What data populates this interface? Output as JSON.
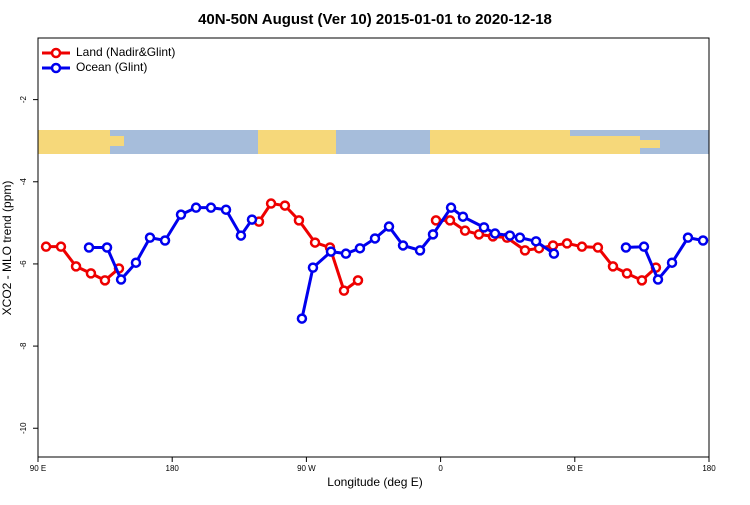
{
  "chart_data": {
    "type": "line",
    "title": "40N-50N August (Ver 10)   2015-01-01 to 2020-12-18",
    "x_label": "Longitude (deg E)",
    "y_label": "XCO2 - MLO trend (ppm)",
    "xlim": [
      90,
      540
    ],
    "ylim": [
      -10.7,
      -0.5
    ],
    "xticks": [
      {
        "value": 90,
        "label": "90 E"
      },
      {
        "value": 180,
        "label": "180"
      },
      {
        "value": 270,
        "label": "90 W"
      },
      {
        "value": 360,
        "label": "0"
      },
      {
        "value": 450,
        "label": "90 E"
      },
      {
        "value": 540,
        "label": "180"
      }
    ],
    "yticks": [
      -10,
      -8,
      -6,
      -4,
      -2
    ],
    "legend": "top-left",
    "series": [
      {
        "name": "Land (Nadir&Glint)",
        "color": "#ee0000",
        "x": [
          95.4,
          105.4,
          115.5,
          125.5,
          134.9,
          144.3,
          null,
          238.2,
          246.3,
          255.6,
          265,
          275.8,
          285.8,
          295.2,
          304.6,
          null,
          356.9,
          366.3,
          376.4,
          385.7,
          395.1,
          404.5,
          416.6,
          426,
          435.4,
          444.8,
          454.8,
          465.5,
          475.6,
          485,
          495,
          504.4
        ],
        "values": [
          -5.58,
          -5.58,
          -6.06,
          -6.23,
          -6.4,
          -6.11,
          null,
          -4.97,
          -4.53,
          -4.58,
          -4.94,
          -5.48,
          -5.6,
          -6.65,
          -6.4,
          null,
          -4.94,
          -4.94,
          -5.19,
          -5.28,
          -5.33,
          -5.36,
          -5.67,
          -5.62,
          -5.55,
          -5.5,
          -5.58,
          -5.6,
          -6.06,
          -6.23,
          -6.4,
          -6.09
        ]
      },
      {
        "name": "Ocean (Glint)",
        "color": "#0000ee",
        "x": [
          124.2,
          136.3,
          145.7,
          155.7,
          165.1,
          175.2,
          185.9,
          196,
          206,
          216.1,
          226.1,
          233.5,
          null,
          267,
          274.4,
          286.5,
          296.5,
          305.9,
          316,
          325.4,
          334.8,
          346.2,
          354.9,
          367,
          375,
          389.1,
          396.5,
          406.5,
          413.2,
          424,
          436,
          null,
          484.3,
          496.4,
          505.8,
          515.2,
          525.9,
          536
        ],
        "values": [
          -5.6,
          -5.6,
          -6.38,
          -5.97,
          -5.36,
          -5.43,
          -4.8,
          -4.63,
          -4.63,
          -4.68,
          -5.31,
          -4.92,
          null,
          -7.33,
          -6.09,
          -5.7,
          -5.75,
          -5.62,
          -5.38,
          -5.09,
          -5.55,
          -5.67,
          -5.28,
          -4.63,
          -4.85,
          -5.11,
          -5.26,
          -5.31,
          -5.36,
          -5.45,
          -5.75,
          null,
          -5.6,
          -5.58,
          -6.38,
          -5.97,
          -5.36,
          -5.43
        ]
      }
    ]
  }
}
